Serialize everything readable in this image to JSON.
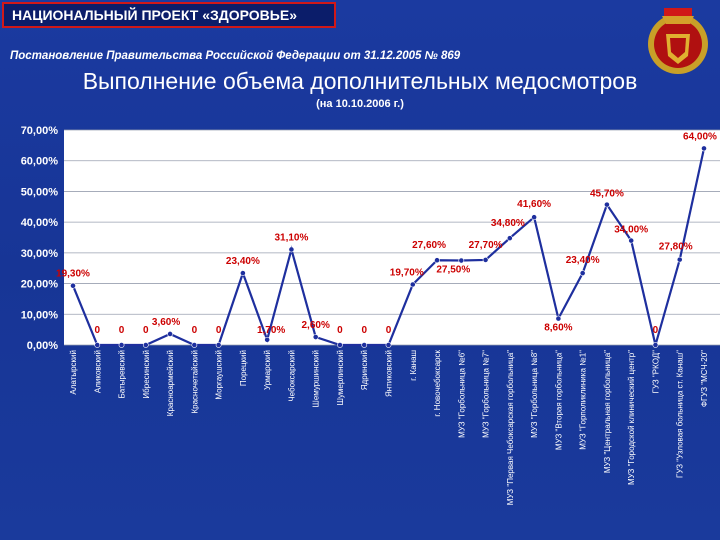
{
  "header": {
    "project": "НАЦИОНАЛЬНЫЙ ПРОЕКТ «ЗДОРОВЬЕ»",
    "decree": "Постановление Правительства Российской Федерации от 31.12.2005 № 869",
    "title": "Выполнение объема дополнительных медосмотров",
    "date": "(на 10.10.2006 г.)"
  },
  "colors": {
    "line": "#1e2f9e",
    "point_label": "#cc0000",
    "tick_label": "#ffffff",
    "plot_bg": "#ffffff"
  },
  "chart_data": {
    "type": "line",
    "title": "Выполнение объема дополнительных медосмотров",
    "ylim": [
      0,
      70
    ],
    "yticks": [
      "0,00%",
      "10,00%",
      "20,00%",
      "30,00%",
      "40,00%",
      "50,00%",
      "60,00%",
      "70,00%"
    ],
    "grid": true,
    "categories": [
      "Алатырский",
      "Аликовский",
      "Батыревский",
      "Ибресинский",
      "Красноармейский",
      "Красночетайский",
      "Моргаушский",
      "Порецкий",
      "Урмарский",
      "Чебоксарский",
      "Шемуршинский",
      "Шумерлинский",
      "Ядринский",
      "Янтиковский",
      "г. Канаш",
      "г. Новочебоксарск",
      "МУЗ \"Горбольница №6\"",
      "МУЗ \"Горбольница №7\"",
      "МУЗ \"Первая Чебоксарская горбольница\"",
      "МУЗ \"Горбольница №8\"",
      "МУЗ \"Вторая горбольница\"",
      "МУЗ \"Горполиклиника №1\"",
      "МУЗ \"Центральная горбольница\"",
      "МУЗ \"Городской клинический центр\"",
      "ГУЗ \"РКОД\"",
      "ГУЗ \"Узловая больница ст. Канаш\"",
      "ФГУЗ \"МСЧ-20\""
    ],
    "values": [
      19.3,
      0,
      0,
      0,
      3.6,
      0,
      0,
      23.4,
      1.7,
      31.1,
      2.6,
      0,
      0,
      0,
      19.7,
      27.6,
      27.5,
      27.7,
      34.8,
      41.6,
      8.6,
      23.4,
      45.7,
      34.0,
      0,
      27.8,
      64.0
    ],
    "labels": [
      "19,30%",
      "0",
      "0",
      "0",
      "3,60%",
      "0",
      "0",
      "23,40%",
      "1,70%",
      "31,10%",
      "2,60%",
      "0",
      "0",
      "0",
      "19,70%",
      "27,60%",
      "27,50%",
      "27,70%",
      "34,80%",
      "41,60%",
      "8,60%",
      "23,40%",
      "45,70%",
      "34,00%",
      "0",
      "27,80%",
      "64,00%"
    ]
  }
}
